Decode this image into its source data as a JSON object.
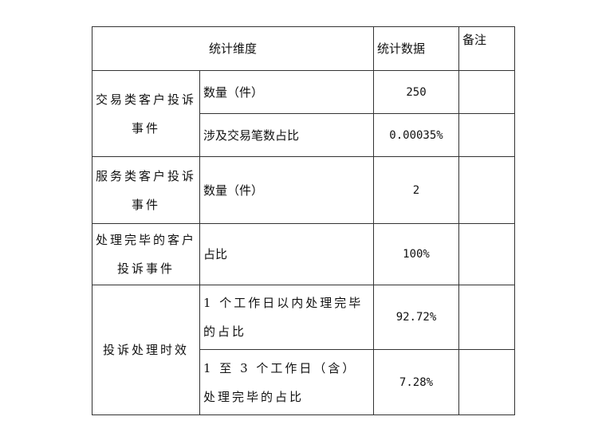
{
  "header": {
    "dimension": "统计维度",
    "data": "统计数据",
    "remark": "备注"
  },
  "groups": [
    {
      "label": "交易类客户投诉事件",
      "rows": [
        {
          "item": "数量（件）",
          "value": "250",
          "remark": ""
        },
        {
          "item": "涉及交易笔数占比",
          "value": "0.00035%",
          "remark": ""
        }
      ]
    },
    {
      "label": "服务类客户投诉事件",
      "rows": [
        {
          "item": "数量（件）",
          "value": "2",
          "remark": ""
        }
      ]
    },
    {
      "label": "处理完毕的客户投诉事件",
      "rows": [
        {
          "item": "占比",
          "value": "100%",
          "remark": ""
        }
      ]
    },
    {
      "label": "投诉处理时效",
      "rows": [
        {
          "item": "1 个工作日以内处理完毕的占比",
          "value": "92.72%",
          "remark": ""
        },
        {
          "item": "1 至 3 个工作日（含）处理完毕的占比",
          "value": "7.28%",
          "remark": ""
        }
      ]
    }
  ]
}
